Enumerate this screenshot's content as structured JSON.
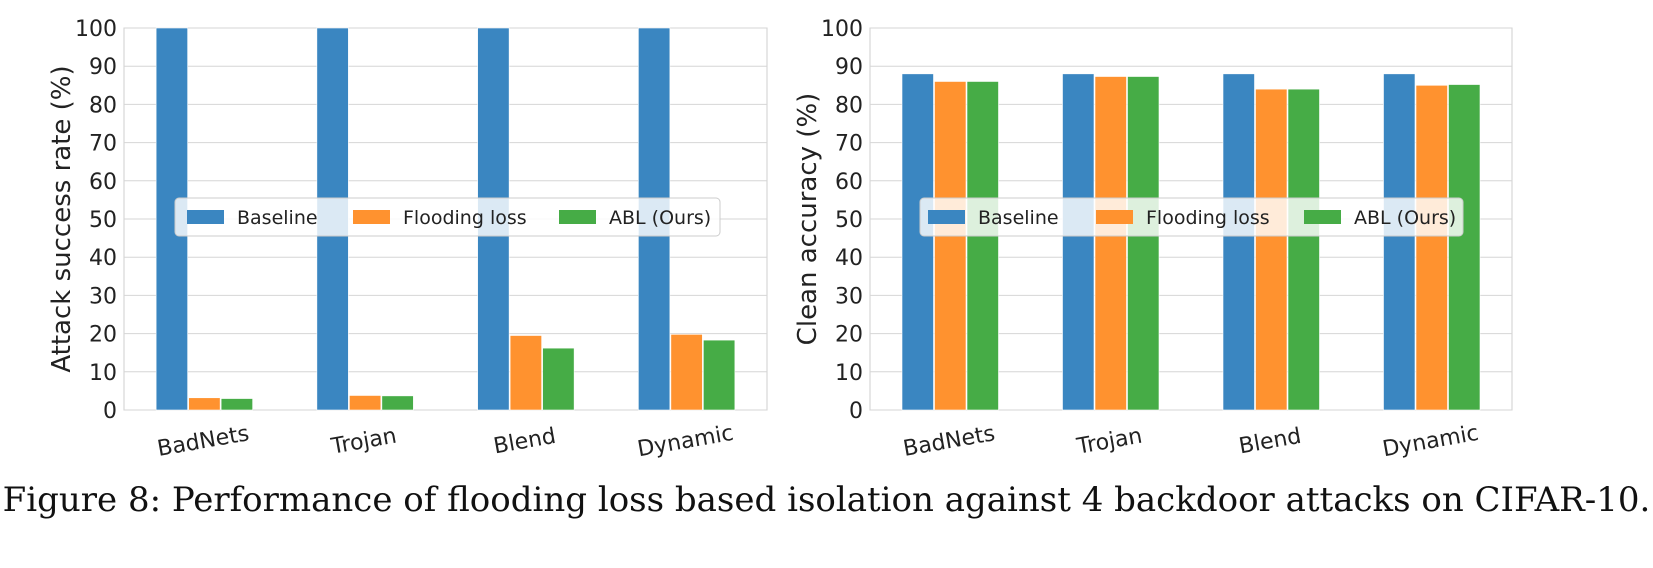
{
  "caption": "Figure 8: Performance of flooding loss based isolation against 4 backdoor attacks on CIFAR-10.",
  "colors": {
    "Baseline": "#3a86c1",
    "Flooding loss": "#ff922f",
    "ABL (Ours)": "#46ac46"
  },
  "chart_data": [
    {
      "type": "bar",
      "categories": [
        "BadNets",
        "Trojan",
        "Blend",
        "Dynamic"
      ],
      "ylabel": "Attack success rate (%)",
      "ylim": [
        0,
        100
      ],
      "yticks": [
        0,
        10,
        20,
        30,
        40,
        50,
        60,
        70,
        80,
        90,
        100
      ],
      "grid": true,
      "legend_position": "center",
      "series": [
        {
          "name": "Baseline",
          "values": [
            100,
            100,
            100,
            100
          ]
        },
        {
          "name": "Flooding loss",
          "values": [
            3.2,
            3.8,
            19.5,
            19.8
          ]
        },
        {
          "name": "ABL (Ours)",
          "values": [
            3.0,
            3.7,
            16.2,
            18.3
          ]
        }
      ]
    },
    {
      "type": "bar",
      "categories": [
        "BadNets",
        "Trojan",
        "Blend",
        "Dynamic"
      ],
      "ylabel": "Clean accuracy (%)",
      "ylim": [
        0,
        100
      ],
      "yticks": [
        0,
        10,
        20,
        30,
        40,
        50,
        60,
        70,
        80,
        90,
        100
      ],
      "grid": true,
      "legend_position": "center",
      "series": [
        {
          "name": "Baseline",
          "values": [
            88.0,
            88.0,
            88.0,
            88.0
          ]
        },
        {
          "name": "Flooding loss",
          "values": [
            86.0,
            87.3,
            84.0,
            85.0
          ]
        },
        {
          "name": "ABL (Ours)",
          "values": [
            86.0,
            87.3,
            84.0,
            85.2
          ]
        }
      ]
    }
  ]
}
